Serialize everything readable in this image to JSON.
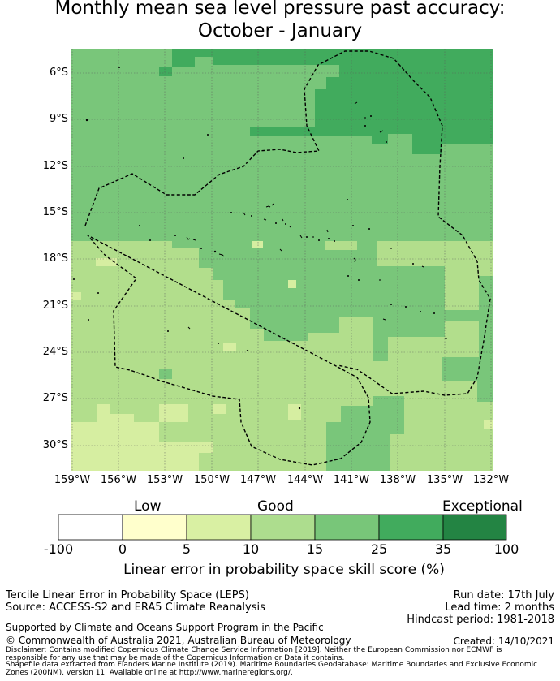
{
  "title": {
    "line1": "Monthly mean sea level pressure past accuracy:",
    "line2": "October - January"
  },
  "map": {
    "lat_labels": [
      "6°S",
      "9°S",
      "12°S",
      "15°S",
      "18°S",
      "21°S",
      "24°S",
      "27°S",
      "30°S"
    ],
    "lon_labels": [
      "159°W",
      "156°W",
      "153°W",
      "150°W",
      "147°W",
      "144°W",
      "141°W",
      "138°W",
      "135°W",
      "132°W"
    ],
    "colors": {
      "band_5_10": "#d6eea1",
      "band_10_15": "#b2de8c",
      "band_15_25": "#79c67a",
      "band_25_35": "#41ab5d",
      "coastline": "#000000",
      "eez_boundary": "#000000",
      "gridline": "#5a5a5a"
    }
  },
  "colorbar": {
    "categories": [
      "Low",
      "Good",
      "Exceptional"
    ],
    "ticks": [
      "-100",
      "0",
      "5",
      "10",
      "15",
      "25",
      "35",
      "100"
    ],
    "colors": [
      "#ffffff",
      "#ffffcc",
      "#d9f0a3",
      "#addd8e",
      "#78c679",
      "#41ab5d",
      "#238443"
    ],
    "title": "Linear error in probability space skill score (%)"
  },
  "info": {
    "product": "Tercile Linear Error in Probability Space (LEPS)",
    "source": "Source: ACCESS-S2 and ERA5 Climate Reanalysis",
    "run_date": "Run date: 17th July",
    "lead_time": "Lead time: 2 months",
    "hindcast": "Hindcast period: 1981-2018",
    "support": "Supported by Climate and Oceans Support Program in the Pacific",
    "copyright": "© Commonwealth of Australia 2021, Australian Bureau of Meteorology",
    "created": "Created: 14/10/2021",
    "disclaimer_1": "Disclaimer: Contains modified Copernicus Climate Change Service Information [2019]. Neither the European Commission nor ECMWF is",
    "disclaimer_2": "responsible for any use that may be made of the Copernicus Information or Data it contains.",
    "disclaimer_3": "Shapefile data extracted from Flanders Marine Institute (2019). Maritime Boundaries Geodatabase: Maritime Boundaries and Exclusive Economic",
    "disclaimer_4": "Zones (200NM), version 11. Available online at http://www.marineregions.org/."
  }
}
